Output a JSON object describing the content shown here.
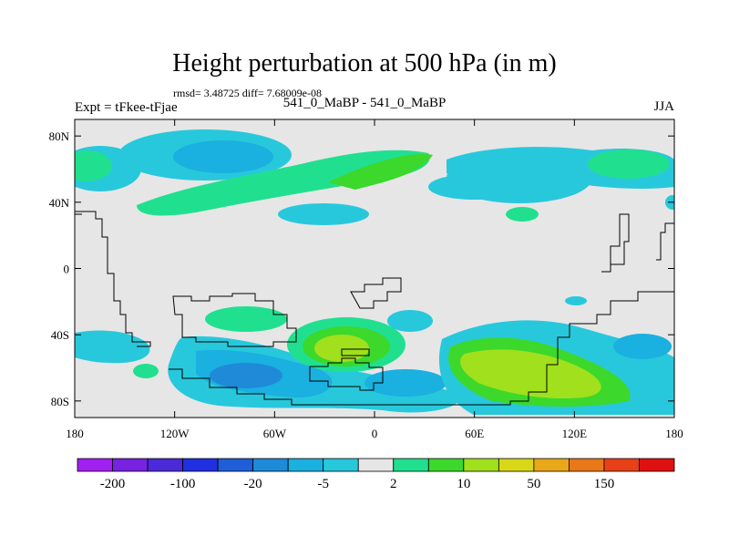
{
  "header": {
    "title": "Height perturbation at 500 hPa (in m)",
    "stats": "rmsd= 3.48725 diff= 7.68009e-08",
    "experiment": "Expt = tFkee-tFjae",
    "center_label": "541_0_MaBP - 541_0_MaBP",
    "season": "JJA"
  },
  "map": {
    "projection": "cylindrical equidistant",
    "lon_range": [
      -180,
      180
    ],
    "lat_range": [
      -90,
      90
    ],
    "y_ticks": [
      {
        "label": "80N",
        "lat": 80
      },
      {
        "label": "40N",
        "lat": 40
      },
      {
        "label": "0",
        "lat": 0
      },
      {
        "label": "40S",
        "lat": -40
      },
      {
        "label": "80S",
        "lat": -80
      }
    ],
    "x_ticks": [
      {
        "label": "180",
        "lon": -180
      },
      {
        "label": "120W",
        "lon": -120
      },
      {
        "label": "60W",
        "lon": -60
      },
      {
        "label": "0",
        "lon": 0
      },
      {
        "label": "60E",
        "lon": 60
      },
      {
        "label": "120E",
        "lon": 120
      },
      {
        "label": "180",
        "lon": 180
      }
    ],
    "background_color": "#e6e6e6"
  },
  "colorbar": {
    "colors": [
      "#a020f0",
      "#7722e0",
      "#4b2ad8",
      "#2030e0",
      "#1e5ed8",
      "#1e8ad8",
      "#1ab0e0",
      "#28c8dc",
      "#e6e6e6",
      "#20e090",
      "#3cd82c",
      "#a0e01c",
      "#d8d818",
      "#e8a818",
      "#e87818",
      "#e84018",
      "#e01010"
    ],
    "labels": [
      {
        "text": "-200",
        "index": 1
      },
      {
        "text": "-100",
        "index": 3
      },
      {
        "text": "-20",
        "index": 5
      },
      {
        "text": "-5",
        "index": 7
      },
      {
        "text": "2",
        "index": 9
      },
      {
        "text": "10",
        "index": 11
      },
      {
        "text": "50",
        "index": 13
      },
      {
        "text": "150",
        "index": 15
      }
    ]
  }
}
